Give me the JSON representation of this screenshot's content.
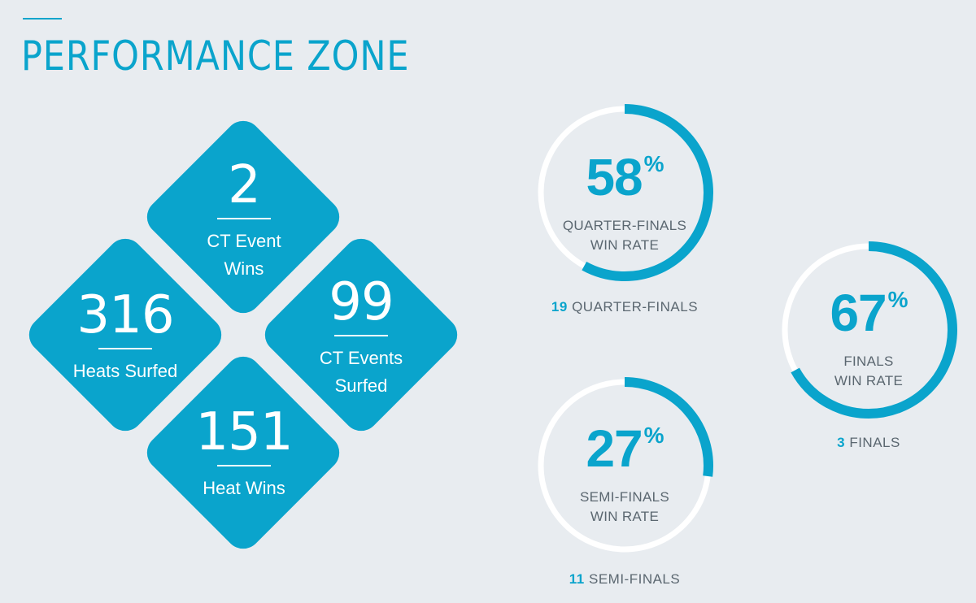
{
  "header": {
    "title": "PERFORMANCE ZONE"
  },
  "stats": {
    "event_wins": {
      "value": "2",
      "label_line1": "CT Event",
      "label_line2": "Wins"
    },
    "heats_surfed": {
      "value": "316",
      "label_line1": "Heats Surfed"
    },
    "events_surfed": {
      "value": "99",
      "label_line1": "CT Events",
      "label_line2": "Surfed"
    },
    "heat_wins": {
      "value": "151",
      "label_line1": "Heat Wins"
    }
  },
  "gauges": {
    "quarter_finals": {
      "percent": 58,
      "percent_text": "58",
      "percent_sign": "%",
      "label_line1": "QUARTER-FINALS",
      "label_line2": "WIN RATE",
      "count": "19",
      "count_label": "QUARTER-FINALS"
    },
    "finals": {
      "percent": 67,
      "percent_text": "67",
      "percent_sign": "%",
      "label_line1": "FINALS",
      "label_line2": "WIN RATE",
      "count": "3",
      "count_label": "FINALS"
    },
    "semi_finals": {
      "percent": 27,
      "percent_text": "27",
      "percent_sign": "%",
      "label_line1": "SEMI-FINALS",
      "label_line2": "WIN RATE",
      "count": "11",
      "count_label": "SEMI-FINALS"
    }
  },
  "colors": {
    "accent": "#0aa4cc",
    "track": "#ffffff",
    "background": "#e8ecf0",
    "muted_text": "#5b6770"
  }
}
